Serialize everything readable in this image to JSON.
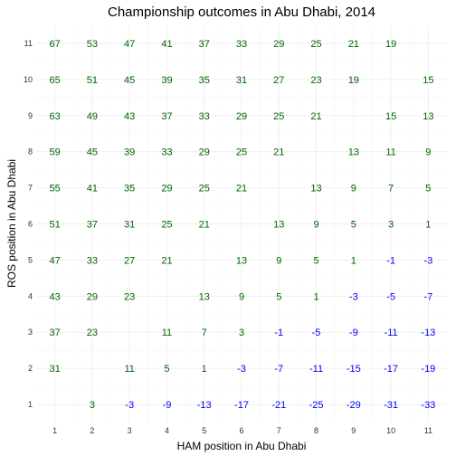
{
  "chart_data": {
    "type": "table",
    "title": "Championship outcomes in Abu Dhabi, 2014",
    "xlabel": "HAM position in Abu Dhabi",
    "ylabel": "ROS position in Abu Dhabi",
    "x_ticks": [
      1,
      2,
      3,
      4,
      5,
      6,
      7,
      8,
      9,
      10,
      11
    ],
    "y_ticks": [
      1,
      2,
      3,
      4,
      5,
      6,
      7,
      8,
      9,
      10,
      11
    ],
    "xlim": [
      0.5,
      11.5
    ],
    "ylim": [
      0.5,
      11.5
    ],
    "grid": true,
    "colors": {
      "positive": "#006400",
      "negative": "#0000ff"
    },
    "rows": [
      {
        "ros": 11,
        "values": [
          67,
          53,
          47,
          41,
          37,
          33,
          29,
          25,
          21,
          19,
          null
        ]
      },
      {
        "ros": 10,
        "values": [
          65,
          51,
          45,
          39,
          35,
          31,
          27,
          23,
          19,
          null,
          15
        ]
      },
      {
        "ros": 9,
        "values": [
          63,
          49,
          43,
          37,
          33,
          29,
          25,
          21,
          null,
          15,
          13
        ]
      },
      {
        "ros": 8,
        "values": [
          59,
          45,
          39,
          33,
          29,
          25,
          21,
          null,
          13,
          11,
          9
        ]
      },
      {
        "ros": 7,
        "values": [
          55,
          41,
          35,
          29,
          25,
          21,
          null,
          13,
          9,
          7,
          5
        ]
      },
      {
        "ros": 6,
        "values": [
          51,
          37,
          31,
          25,
          21,
          null,
          13,
          9,
          5,
          3,
          1
        ]
      },
      {
        "ros": 5,
        "values": [
          47,
          33,
          27,
          21,
          null,
          13,
          9,
          5,
          1,
          -1,
          -3
        ]
      },
      {
        "ros": 4,
        "values": [
          43,
          29,
          23,
          null,
          13,
          9,
          5,
          1,
          -3,
          -5,
          -7
        ]
      },
      {
        "ros": 3,
        "values": [
          37,
          23,
          null,
          11,
          7,
          3,
          -1,
          -5,
          -9,
          -11,
          -13
        ]
      },
      {
        "ros": 2,
        "values": [
          31,
          null,
          11,
          5,
          1,
          -3,
          -7,
          -11,
          -15,
          -17,
          -19
        ]
      },
      {
        "ros": 1,
        "values": [
          null,
          3,
          -3,
          -9,
          -13,
          -17,
          -21,
          -25,
          -29,
          -31,
          -33
        ]
      }
    ]
  }
}
